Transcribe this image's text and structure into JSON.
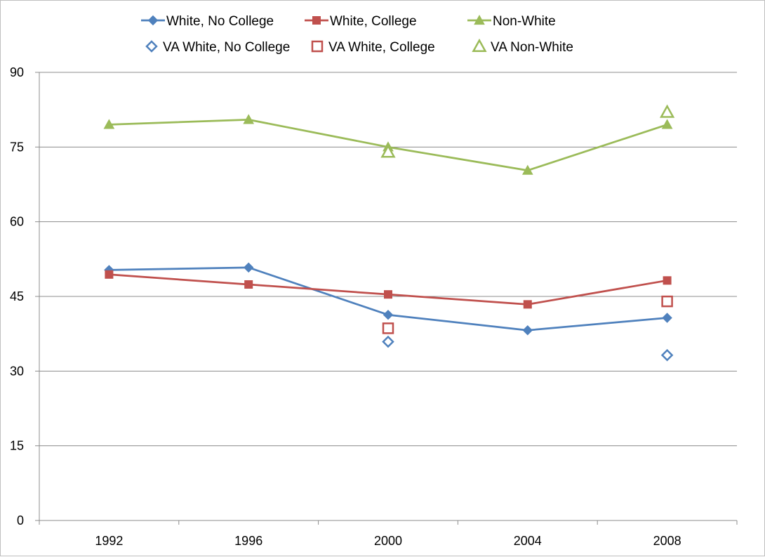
{
  "chart_data": {
    "type": "line",
    "title": "",
    "xlabel": "",
    "ylabel": "",
    "x": [
      "1992",
      "1996",
      "2000",
      "2004",
      "2008"
    ],
    "ylim": [
      0,
      90
    ],
    "yticks": [
      0,
      15,
      30,
      45,
      60,
      75,
      90
    ],
    "grid": "horizontal",
    "legend_position": "top",
    "series": [
      {
        "name": "White, No College",
        "values": [
          50.3,
          50.8,
          41.3,
          38.2,
          40.7
        ],
        "color": "#4f81bd",
        "marker": "diamond",
        "filled": true,
        "line": true
      },
      {
        "name": "White, College",
        "values": [
          49.4,
          47.4,
          45.4,
          43.4,
          48.2
        ],
        "color": "#c0504d",
        "marker": "square",
        "filled": true,
        "line": true
      },
      {
        "name": "Non-White",
        "values": [
          79.5,
          80.5,
          75.0,
          70.3,
          79.5
        ],
        "color": "#9bbb59",
        "marker": "triangle",
        "filled": true,
        "line": true
      },
      {
        "name": "VA White, No College",
        "values": [
          null,
          null,
          35.9,
          null,
          33.2
        ],
        "color": "#4f81bd",
        "marker": "diamond",
        "filled": false,
        "line": false
      },
      {
        "name": "VA White, College",
        "values": [
          null,
          null,
          38.6,
          null,
          44.0
        ],
        "color": "#c0504d",
        "marker": "square",
        "filled": false,
        "line": false
      },
      {
        "name": "VA Non-White",
        "values": [
          null,
          null,
          74.0,
          null,
          82.0
        ],
        "color": "#9bbb59",
        "marker": "triangle",
        "filled": false,
        "line": false
      }
    ]
  }
}
